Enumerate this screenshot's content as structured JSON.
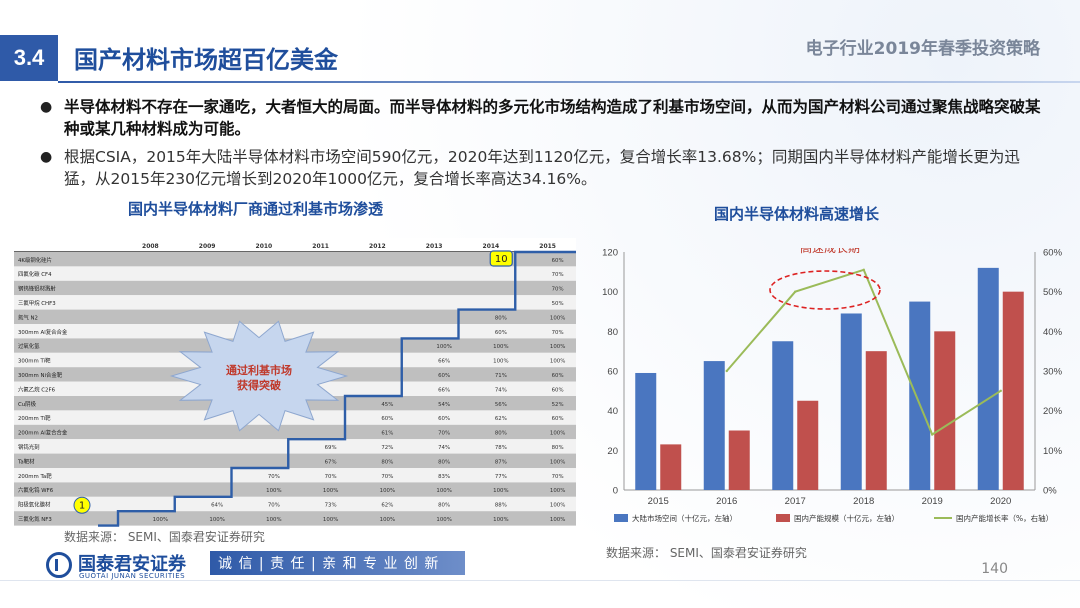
{
  "header": {
    "section_number": "3.4",
    "title": "国产材料市场超百亿美金",
    "report_title": "电子行业2019年春季投资策略"
  },
  "bullets": [
    {
      "text": "半导体材料不存在一家通吃，大者恒大的局面。而半导体材料的多元化市场结构造成了利基市场空间，从而为国产材料公司通过聚焦战略突破某种或某几种材料成为可能。"
    },
    {
      "text": "根据CSIA，2015年大陆半导体材料市场空间590亿元，2020年达到1120亿元，复合增长率13.68%；同期国内半导体材料产能增长更为迅猛，从2015年230亿元增长到2020年1000亿元，复合增长率高达34.16%。"
    }
  ],
  "left_figure": {
    "title": "国内半导体材料厂商通过利基市场渗透",
    "years": [
      "2008",
      "2009",
      "2010",
      "2011",
      "2012",
      "2013",
      "2014",
      "2015"
    ],
    "rows": [
      {
        "name": "4K级钢化硅片",
        "vals": [
          "",
          "",
          "",
          "",
          "",
          "",
          "",
          "60%"
        ]
      },
      {
        "name": "四氟化碳 CF4",
        "vals": [
          "",
          "",
          "",
          "",
          "",
          "",
          "",
          "70%"
        ]
      },
      {
        "name": "钢钨锋铝材溅射",
        "vals": [
          "",
          "",
          "",
          "",
          "",
          "",
          "",
          "70%"
        ]
      },
      {
        "name": "三氟甲烷 CHF3",
        "vals": [
          "",
          "",
          "",
          "",
          "",
          "",
          "",
          "50%"
        ]
      },
      {
        "name": "氮气 N2",
        "vals": [
          "",
          "",
          "",
          "",
          "",
          "",
          "80%",
          "100%"
        ]
      },
      {
        "name": "300mm Al复合合金",
        "vals": [
          "",
          "",
          "",
          "",
          "",
          "",
          "60%",
          "70%"
        ]
      },
      {
        "name": "过氧化氢",
        "vals": [
          "",
          "",
          "",
          "",
          "",
          "100%",
          "100%",
          "100%"
        ]
      },
      {
        "name": "300mm Ti靶",
        "vals": [
          "",
          "",
          "",
          "",
          "",
          "66%",
          "100%",
          "100%"
        ]
      },
      {
        "name": "300mm Ni合金靶",
        "vals": [
          "",
          "",
          "",
          "",
          "",
          "60%",
          "71%",
          "60%"
        ]
      },
      {
        "name": "六氟乙烷 C2F6",
        "vals": [
          "",
          "",
          "",
          "",
          "",
          "66%",
          "74%",
          "60%"
        ]
      },
      {
        "name": "Cu阴极",
        "vals": [
          "",
          "",
          "",
          "",
          "45%",
          "54%",
          "56%",
          "52%"
        ]
      },
      {
        "name": "200mm Ti靶",
        "vals": [
          "",
          "",
          "",
          "",
          "60%",
          "60%",
          "62%",
          "60%"
        ]
      },
      {
        "name": "200mm Al复合合金",
        "vals": [
          "",
          "",
          "",
          "",
          "61%",
          "70%",
          "80%",
          "100%"
        ]
      },
      {
        "name": "钢钨光刻",
        "vals": [
          "",
          "",
          "",
          "69%",
          "72%",
          "74%",
          "78%",
          "80%"
        ]
      },
      {
        "name": "Ta靶材",
        "vals": [
          "",
          "",
          "",
          "67%",
          "80%",
          "80%",
          "87%",
          "100%"
        ]
      },
      {
        "name": "200mm Ta靶",
        "vals": [
          "",
          "",
          "70%",
          "70%",
          "70%",
          "83%",
          "77%",
          "70%"
        ]
      },
      {
        "name": "六氟化钨 WF6",
        "vals": [
          "",
          "",
          "100%",
          "100%",
          "100%",
          "100%",
          "100%",
          "100%"
        ]
      },
      {
        "name": "阳极氧化膜材",
        "vals": [
          "",
          "64%",
          "70%",
          "73%",
          "62%",
          "80%",
          "88%",
          "100%"
        ]
      },
      {
        "name": "三氟化氮 NF3",
        "vals": [
          "100%",
          "100%",
          "100%",
          "100%",
          "100%",
          "100%",
          "100%",
          "100%"
        ]
      }
    ],
    "start_marker": "1",
    "end_marker": "10",
    "burst_label_line1": "通过利基市场",
    "burst_label_line2": "获得突破",
    "source": "数据来源： SEMI、国泰君安证券研究"
  },
  "chart_data": {
    "type": "bar",
    "title": "国内半导体材料高速增长",
    "categories": [
      "2015",
      "2016",
      "2017",
      "2018",
      "2019",
      "2020"
    ],
    "series": [
      {
        "name": "大陆市场空间（十亿元，左轴）",
        "type": "bar",
        "axis": "left",
        "color": "#4a76c0",
        "values": [
          59,
          65,
          75,
          89,
          95,
          112
        ]
      },
      {
        "name": "国内产能规模（十亿元，左轴）",
        "type": "bar",
        "axis": "left",
        "color": "#c0504d",
        "values": [
          23,
          30,
          45,
          70,
          80,
          100
        ]
      },
      {
        "name": "国内产能增长率（%，右轴）",
        "type": "line",
        "axis": "right",
        "color": "#9bbb59",
        "values": [
          null,
          30,
          50,
          55.5,
          14,
          25
        ]
      }
    ],
    "ylim_left": [
      0,
      120
    ],
    "yticks_left": [
      "0",
      "20",
      "40",
      "60",
      "80",
      "100",
      "120"
    ],
    "ylim_right": [
      0,
      60
    ],
    "yticks_right": [
      "0%",
      "10%",
      "20%",
      "30%",
      "40%",
      "50%",
      "60%"
    ],
    "annotation": "高速成长期",
    "legend_position": "bottom",
    "grid": false,
    "source": "数据来源： SEMI、国泰君安证券研究"
  },
  "footer": {
    "logo_cn": "国泰君安证券",
    "logo_en": "GUOTAI JUNAN SECURITIES",
    "slogan": "诚 信 | 责 任 | 亲 和  专 业  创 新",
    "page_number": "140"
  },
  "colors": {
    "brand_blue": "#1f4e9c",
    "accent": "#2f5aa8"
  }
}
